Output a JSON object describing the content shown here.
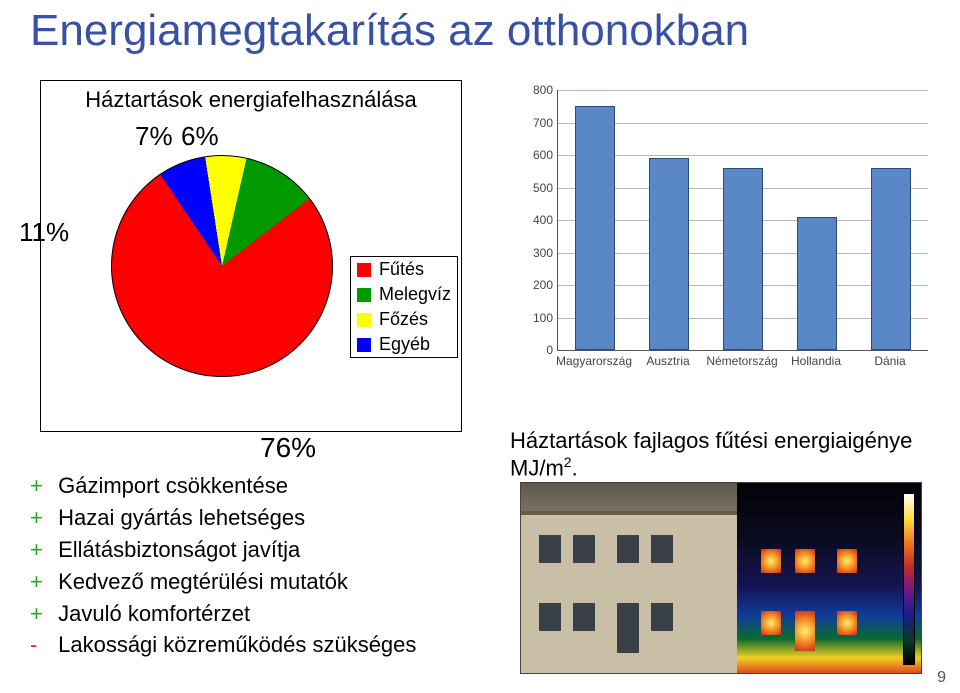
{
  "title": {
    "text": "Energiamegtakarítás az otthonokban",
    "color": "#3951a3",
    "fontsize": 44
  },
  "page_number": "9",
  "pie_chart": {
    "type": "pie",
    "title": "Háztartások energiafelhasználása",
    "categories": [
      "Fűtés",
      "Melegvíz",
      "Főzés",
      "Egyéb"
    ],
    "values_percent": [
      76,
      11,
      6,
      7
    ],
    "colors": [
      "#ff0000",
      "#009900",
      "#ffff00",
      "#0000ff"
    ],
    "percent_labels": [
      "76%",
      "11%",
      "6%",
      "7%"
    ],
    "border_color": "#000000",
    "label_fontsize": 26
  },
  "bar_chart": {
    "type": "bar",
    "title": "Háztartások fajlagos fűtési energiaigénye MJ/m",
    "title_superscript": "2",
    "title_suffix": ".",
    "categories": [
      "Magyarország",
      "Ausztria",
      "Németország",
      "Hollandia",
      "Dánia"
    ],
    "values": [
      750,
      590,
      560,
      410,
      560
    ],
    "bar_color": "#5a87c6",
    "bar_border_color": "#2a4a7a",
    "ylim": [
      0,
      800
    ],
    "ytick_step": 100,
    "yticks": [
      0,
      100,
      200,
      300,
      400,
      500,
      600,
      700,
      800
    ],
    "grid_color": "#b8b8b8",
    "bar_width": 0.55,
    "background_color": "#ffffff",
    "plot_background": "#ffffff",
    "fontsize_ticks": 12
  },
  "bullets": {
    "items": [
      {
        "sign": "+",
        "text": "Gázimport csökkentése"
      },
      {
        "sign": "+",
        "text": "Hazai gyártás lehetséges"
      },
      {
        "sign": "+",
        "text": "Ellátásbiztonságot javítja"
      },
      {
        "sign": "+",
        "text": "Kedvező megtérülési mutatók"
      },
      {
        "sign": "+",
        "text": "Javuló komfortérzet"
      },
      {
        "sign": "-",
        "text": "Lakossági közreműködés szükséges"
      }
    ],
    "plus_color": "#2aa82a",
    "minus_color": "#d02a2a",
    "fontsize": 22
  }
}
